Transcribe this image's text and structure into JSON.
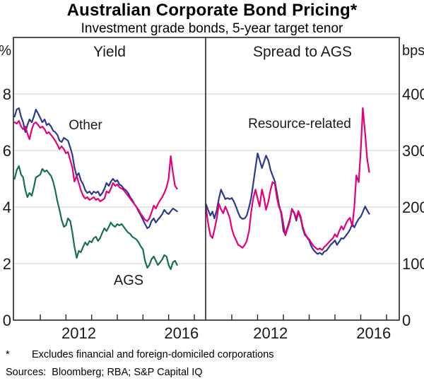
{
  "title": "Australian Corporate Bond Pricing*",
  "subtitle": "Investment grade bonds, 5-year target tenor",
  "footnote": {
    "marker": "*",
    "text": "Excludes financial and foreign-domiciled corporations"
  },
  "sources": "Sources:  Bloomberg; RBA; S&P Capital IQ",
  "colors": {
    "other": "#2b3990",
    "resource": "#e5007a",
    "ags": "#186e51",
    "grid": "#cccccc",
    "frame": "#262626",
    "text": "#1a1a1a"
  },
  "chart_data": [
    {
      "type": "line",
      "panel": "left",
      "title": "Yield",
      "unit": "%",
      "ylim": [
        0,
        10
      ],
      "yticks": [
        8,
        6,
        4,
        2,
        0
      ],
      "xlim": [
        2010,
        2017.45
      ],
      "xticks_years": [
        2011,
        2012,
        2013,
        2014,
        2015,
        2016,
        2017
      ],
      "xtick_labels": [
        {
          "text": "2012",
          "year": 2012.5
        },
        {
          "text": "2016",
          "year": 2016.5
        }
      ],
      "x": [
        2010,
        2010.08,
        2010.17,
        2010.25,
        2010.33,
        2010.42,
        2010.5,
        2010.58,
        2010.67,
        2010.75,
        2010.83,
        2010.92,
        2011,
        2011.08,
        2011.17,
        2011.25,
        2011.33,
        2011.42,
        2011.5,
        2011.58,
        2011.67,
        2011.75,
        2011.83,
        2011.92,
        2012,
        2012.08,
        2012.17,
        2012.25,
        2012.33,
        2012.42,
        2012.5,
        2012.58,
        2012.67,
        2012.75,
        2012.83,
        2012.92,
        2013,
        2013.08,
        2013.17,
        2013.25,
        2013.33,
        2013.42,
        2013.5,
        2013.58,
        2013.67,
        2013.75,
        2013.83,
        2013.92,
        2014,
        2014.08,
        2014.17,
        2014.25,
        2014.33,
        2014.42,
        2014.5,
        2014.58,
        2014.67,
        2014.75,
        2014.83,
        2014.92,
        2015,
        2015.08,
        2015.17,
        2015.25,
        2015.33,
        2015.42,
        2015.5,
        2015.58,
        2015.67,
        2015.75,
        2015.83,
        2015.92,
        2016,
        2016.08,
        2016.17,
        2016.25,
        2016.33
      ],
      "series": [
        {
          "name": "Other",
          "color_key": "other",
          "values": [
            7.2,
            7.45,
            7.5,
            7.2,
            7.0,
            6.65,
            6.9,
            7.1,
            7.0,
            7.2,
            7.45,
            7.3,
            7.15,
            7.0,
            7.1,
            6.9,
            6.95,
            6.85,
            6.7,
            6.65,
            6.55,
            6.35,
            6.3,
            6.45,
            6.4,
            6.35,
            6.1,
            5.85,
            5.4,
            5.1,
            5.2,
            4.95,
            4.8,
            4.6,
            4.5,
            4.55,
            4.45,
            4.55,
            4.5,
            4.55,
            4.4,
            4.5,
            4.65,
            4.85,
            4.75,
            4.9,
            5.0,
            4.9,
            4.95,
            4.8,
            4.75,
            4.65,
            4.6,
            4.5,
            4.35,
            4.25,
            4.1,
            4.0,
            3.85,
            3.7,
            3.55,
            3.4,
            3.25,
            3.3,
            3.5,
            3.6,
            3.45,
            3.55,
            3.65,
            3.75,
            3.9,
            3.8,
            3.75,
            3.85,
            3.95,
            3.9,
            3.85
          ]
        },
        {
          "name": "Resource-related",
          "color_key": "resource",
          "values": [
            7.0,
            6.95,
            7.05,
            6.85,
            6.75,
            6.85,
            6.6,
            6.4,
            6.75,
            6.95,
            7.0,
            6.9,
            6.8,
            6.85,
            6.75,
            6.6,
            6.65,
            6.55,
            6.45,
            6.35,
            6.2,
            6.05,
            6.15,
            6.05,
            5.9,
            5.95,
            5.65,
            5.4,
            4.9,
            5.1,
            4.85,
            4.6,
            4.4,
            4.3,
            4.35,
            4.25,
            4.3,
            4.35,
            4.25,
            4.3,
            4.2,
            4.25,
            4.3,
            4.55,
            4.5,
            4.65,
            4.85,
            4.75,
            4.8,
            4.7,
            4.65,
            4.6,
            4.5,
            4.4,
            4.3,
            4.2,
            4.1,
            4.0,
            3.9,
            3.75,
            3.65,
            3.55,
            3.5,
            3.6,
            3.8,
            4.05,
            3.95,
            4.1,
            4.25,
            4.35,
            4.5,
            4.7,
            5.0,
            5.8,
            5.2,
            4.75,
            4.65
          ]
        },
        {
          "name": "AGS",
          "color_key": "ags",
          "values": [
            5.0,
            5.3,
            5.45,
            5.15,
            5.05,
            4.6,
            4.35,
            4.5,
            4.4,
            4.7,
            5.05,
            5.1,
            5.15,
            5.35,
            5.25,
            5.3,
            5.2,
            5.1,
            4.9,
            4.6,
            4.2,
            3.9,
            3.55,
            3.3,
            3.35,
            3.6,
            3.5,
            3.1,
            2.6,
            2.2,
            2.45,
            2.4,
            2.6,
            2.75,
            2.65,
            2.8,
            2.75,
            2.9,
            2.95,
            2.8,
            2.9,
            3.1,
            3.25,
            3.15,
            3.3,
            3.45,
            3.35,
            3.3,
            3.4,
            3.35,
            3.4,
            3.3,
            3.2,
            3.1,
            3.05,
            2.95,
            2.9,
            2.85,
            2.75,
            2.6,
            2.5,
            2.1,
            1.85,
            1.95,
            2.15,
            2.25,
            2.1,
            1.95,
            2.05,
            2.15,
            2.3,
            2.25,
            1.95,
            1.8,
            2.05,
            2.1,
            1.95
          ]
        }
      ]
    },
    {
      "type": "line",
      "panel": "right",
      "title": "Spread to AGS",
      "unit": "bps",
      "ylim": [
        0,
        500
      ],
      "yticks": [
        400,
        300,
        200,
        100,
        0
      ],
      "xlim": [
        2010,
        2017.49
      ],
      "xticks_years": [
        2011,
        2012,
        2013,
        2014,
        2015,
        2016,
        2017
      ],
      "xtick_labels": [
        {
          "text": "2012",
          "year": 2012.5
        },
        {
          "text": "2016",
          "year": 2016.5
        }
      ],
      "x": [
        2010,
        2010.08,
        2010.17,
        2010.25,
        2010.33,
        2010.42,
        2010.5,
        2010.58,
        2010.67,
        2010.75,
        2010.83,
        2010.92,
        2011,
        2011.08,
        2011.17,
        2011.25,
        2011.33,
        2011.42,
        2011.5,
        2011.58,
        2011.67,
        2011.75,
        2011.83,
        2011.92,
        2012,
        2012.08,
        2012.17,
        2012.25,
        2012.33,
        2012.42,
        2012.5,
        2012.58,
        2012.67,
        2012.75,
        2012.83,
        2012.92,
        2013,
        2013.08,
        2013.17,
        2013.25,
        2013.33,
        2013.42,
        2013.5,
        2013.58,
        2013.67,
        2013.75,
        2013.83,
        2013.92,
        2014,
        2014.08,
        2014.17,
        2014.25,
        2014.33,
        2014.42,
        2014.5,
        2014.58,
        2014.67,
        2014.75,
        2014.83,
        2014.92,
        2015,
        2015.08,
        2015.17,
        2015.25,
        2015.33,
        2015.42,
        2015.5,
        2015.58,
        2015.67,
        2015.75,
        2015.83,
        2015.92,
        2016,
        2016.08,
        2016.17,
        2016.25,
        2016.33
      ],
      "series": [
        {
          "name": "Other",
          "color_key": "other",
          "values": [
            205,
            195,
            185,
            192,
            180,
            195,
            215,
            231,
            222,
            214,
            216,
            214,
            216,
            210,
            200,
            190,
            182,
            179,
            180,
            185,
            200,
            216,
            241,
            270,
            295,
            283,
            269,
            280,
            291,
            282,
            266,
            256,
            245,
            225,
            204,
            187,
            158,
            151,
            166,
            178,
            195,
            189,
            176,
            191,
            180,
            162,
            151,
            146,
            141,
            131,
            124,
            120,
            117,
            119,
            116,
            121,
            123,
            128,
            133,
            137,
            141,
            133,
            139,
            145,
            144,
            149,
            154,
            160,
            170,
            164,
            172,
            179,
            183,
            191,
            201,
            194,
            188
          ]
        },
        {
          "name": "Resource-related",
          "color_key": "resource",
          "values": [
            198,
            172,
            150,
            145,
            160,
            180,
            206,
            196,
            189,
            201,
            192,
            181,
            162,
            150,
            141,
            133,
            131,
            128,
            133,
            140,
            158,
            191,
            215,
            231,
            215,
            201,
            231,
            216,
            195,
            210,
            230,
            244,
            241,
            216,
            200,
            191,
            170,
            150,
            163,
            175,
            197,
            190,
            180,
            193,
            183,
            165,
            154,
            147,
            143,
            137,
            131,
            128,
            125,
            127,
            124,
            129,
            133,
            137,
            141,
            145,
            152,
            147,
            158,
            166,
            160,
            170,
            177,
            181,
            166,
            200,
            256,
            244,
            300,
            375,
            330,
            285,
            262
          ]
        }
      ]
    }
  ]
}
